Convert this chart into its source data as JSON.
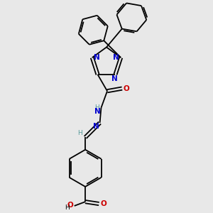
{
  "bg_color": "#e8e8e8",
  "line_color": "#000000",
  "N_color": "#0000cc",
  "O_color": "#cc0000",
  "H_color": "#559999",
  "bond_lw": 1.3,
  "dbo": 0.022,
  "figsize": [
    3.0,
    3.0
  ],
  "dpi": 100,
  "xlim": [
    0,
    3.0
  ],
  "ylim": [
    0,
    3.0
  ]
}
